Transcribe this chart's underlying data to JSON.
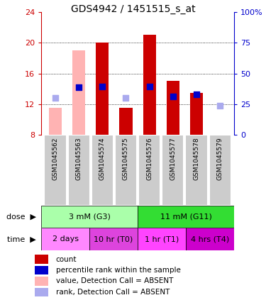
{
  "title": "GDS4942 / 1451515_s_at",
  "samples": [
    "GSM1045562",
    "GSM1045563",
    "GSM1045574",
    "GSM1045575",
    "GSM1045576",
    "GSM1045577",
    "GSM1045578",
    "GSM1045579"
  ],
  "bar_values_red": [
    null,
    null,
    20.0,
    11.5,
    21.0,
    15.0,
    13.5,
    null
  ],
  "bar_values_pink": [
    11.5,
    19.0,
    null,
    null,
    null,
    null,
    null,
    null
  ],
  "dot_blue": [
    null,
    14.2,
    14.3,
    null,
    14.3,
    13.0,
    13.3,
    null
  ],
  "dot_lightblue": [
    12.8,
    null,
    null,
    12.8,
    null,
    null,
    null,
    11.8
  ],
  "ylim_left": [
    8,
    24
  ],
  "yticks_left": [
    8,
    12,
    16,
    20,
    24
  ],
  "ylim_right": [
    0,
    100
  ],
  "yticks_right": [
    0,
    25,
    50,
    75,
    100
  ],
  "yticklabels_right": [
    "0",
    "25",
    "50",
    "75",
    "100%"
  ],
  "left_tick_color": "#cc0000",
  "right_tick_color": "#0000cc",
  "dose_labels": [
    {
      "text": "3 mM (G3)",
      "start": 0,
      "end": 4,
      "color": "#aaffaa"
    },
    {
      "text": "11 mM (G11)",
      "start": 4,
      "end": 8,
      "color": "#33dd33"
    }
  ],
  "time_labels": [
    {
      "text": "2 days",
      "start": 0,
      "end": 2,
      "color": "#ff88ff"
    },
    {
      "text": "10 hr (T0)",
      "start": 2,
      "end": 4,
      "color": "#dd44dd"
    },
    {
      "text": "1 hr (T1)",
      "start": 4,
      "end": 6,
      "color": "#ff44ff"
    },
    {
      "text": "4 hrs (T4)",
      "start": 6,
      "end": 8,
      "color": "#cc00cc"
    }
  ],
  "legend_items": [
    {
      "color": "#cc0000",
      "label": "count"
    },
    {
      "color": "#0000cc",
      "label": "percentile rank within the sample"
    },
    {
      "color": "#ffb3b3",
      "label": "value, Detection Call = ABSENT"
    },
    {
      "color": "#aaaaee",
      "label": "rank, Detection Call = ABSENT"
    }
  ],
  "bar_width": 0.55,
  "bar_bottom": 8.0,
  "dot_size": 40,
  "grid_lines": [
    12,
    16,
    20
  ],
  "sample_box_color": "#cccccc",
  "sample_box_edge": "#ffffff"
}
